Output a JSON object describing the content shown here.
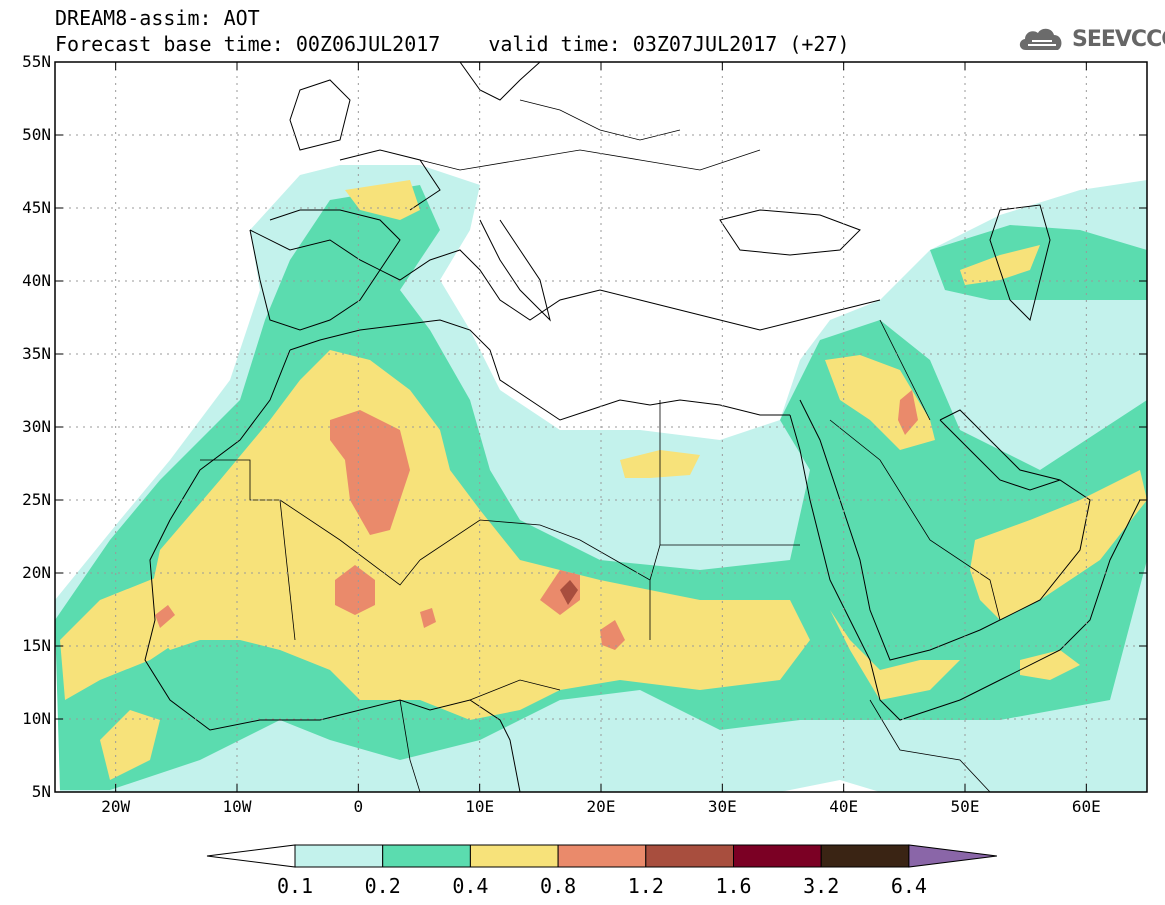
{
  "title": {
    "line1": "DREAM8-assim: AOT",
    "base_time": "Forecast base time: 00Z06JUL2017",
    "valid_time": "valid time: 03Z07JUL2017 (+27)"
  },
  "logo": {
    "text": "SEEVCCC",
    "icon": "cloud-icon"
  },
  "map": {
    "lon_range": [
      -25,
      65
    ],
    "lat_range": [
      5,
      55
    ],
    "x_ticks": [
      {
        "lon": -20,
        "label": "20W"
      },
      {
        "lon": -10,
        "label": "10W"
      },
      {
        "lon": 0,
        "label": "0"
      },
      {
        "lon": 10,
        "label": "10E"
      },
      {
        "lon": 20,
        "label": "20E"
      },
      {
        "lon": 30,
        "label": "30E"
      },
      {
        "lon": 40,
        "label": "40E"
      },
      {
        "lon": 50,
        "label": "50E"
      },
      {
        "lon": 60,
        "label": "60E"
      }
    ],
    "y_ticks": [
      {
        "lat": 55,
        "label": "55N"
      },
      {
        "lat": 50,
        "label": "50N"
      },
      {
        "lat": 45,
        "label": "45N"
      },
      {
        "lat": 40,
        "label": "40N"
      },
      {
        "lat": 35,
        "label": "35N"
      },
      {
        "lat": 30,
        "label": "30N"
      },
      {
        "lat": 25,
        "label": "25N"
      },
      {
        "lat": 20,
        "label": "20N"
      },
      {
        "lat": 15,
        "label": "15N"
      },
      {
        "lat": 10,
        "label": "10N"
      },
      {
        "lat": 5,
        "label": "5N"
      }
    ],
    "grid": true
  },
  "colorbar": {
    "levels": [
      "0.1",
      "0.2",
      "0.4",
      "0.8",
      "1.2",
      "1.6",
      "3.2",
      "6.4"
    ],
    "colors": [
      "#ffffff",
      "#c3f2ec",
      "#5bdcaf",
      "#f7e27a",
      "#ea8a6b",
      "#a84e3e",
      "#7b0024",
      "#3a2414",
      "#8a66a8"
    ]
  }
}
